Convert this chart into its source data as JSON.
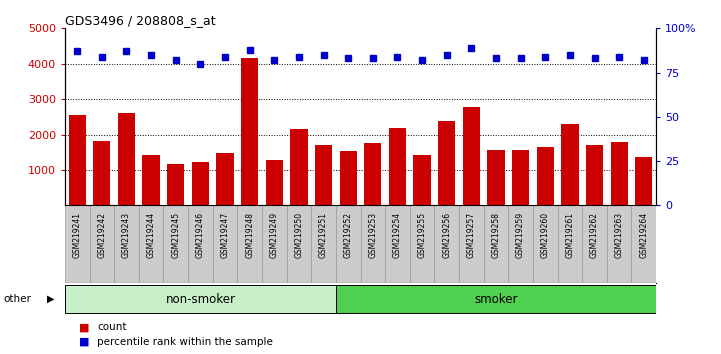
{
  "title": "GDS3496 / 208808_s_at",
  "samples": [
    "GSM219241",
    "GSM219242",
    "GSM219243",
    "GSM219244",
    "GSM219245",
    "GSM219246",
    "GSM219247",
    "GSM219248",
    "GSM219249",
    "GSM219250",
    "GSM219251",
    "GSM219252",
    "GSM219253",
    "GSM219254",
    "GSM219255",
    "GSM219256",
    "GSM219257",
    "GSM219258",
    "GSM219259",
    "GSM219260",
    "GSM219261",
    "GSM219262",
    "GSM219263",
    "GSM219264"
  ],
  "counts": [
    2550,
    1820,
    2620,
    1430,
    1180,
    1210,
    1490,
    4160,
    1270,
    2160,
    1690,
    1540,
    1760,
    2180,
    1430,
    2370,
    2770,
    1570,
    1560,
    1660,
    2290,
    1700,
    1790,
    1370
  ],
  "percentiles": [
    87,
    84,
    87,
    85,
    82,
    80,
    84,
    88,
    82,
    84,
    85,
    83,
    83,
    84,
    82,
    85,
    89,
    83,
    83,
    84,
    85,
    83,
    84,
    82
  ],
  "bar_color": "#cc0000",
  "dot_color": "#0000cc",
  "non_smoker_count": 11,
  "smoker_count": 13,
  "non_smoker_color": "#c8f0c8",
  "smoker_color": "#50d050",
  "group_label_non_smoker": "non-smoker",
  "group_label_smoker": "smoker",
  "other_label": "other",
  "left_ylim": [
    0,
    5000
  ],
  "right_ylim": [
    0,
    100
  ],
  "left_yticks": [
    1000,
    2000,
    3000,
    4000,
    5000
  ],
  "right_yticks": [
    0,
    25,
    50,
    75,
    100
  ],
  "right_yticklabels": [
    "0",
    "25",
    "50",
    "75",
    "100%"
  ],
  "legend_count_label": "count",
  "legend_pct_label": "percentile rank within the sample",
  "cell_bg_color": "#cccccc",
  "cell_edge_color": "#999999",
  "left_tick_color": "#cc0000",
  "right_tick_color": "#0000cc"
}
